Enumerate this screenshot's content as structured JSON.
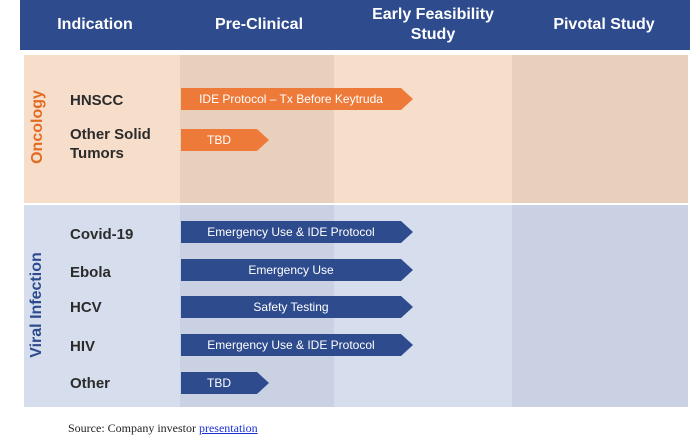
{
  "header": {
    "columns": [
      "Indication",
      "Pre-Clinical",
      "Early Feasibility Study",
      "Pivotal Study"
    ],
    "early_line1": "Early Feasibility",
    "early_line2": "Study"
  },
  "groups": {
    "oncology": {
      "label": "Oncology",
      "rows": [
        {
          "indication": "HNSCC",
          "bar": "IDE Protocol – Tx Before Keytruda"
        },
        {
          "indication_line1": "Other Solid",
          "indication_line2": "Tumors",
          "bar": "TBD"
        }
      ]
    },
    "viral": {
      "label": "Viral Infection",
      "rows": [
        {
          "indication": "Covid-19",
          "bar": "Emergency Use & IDE Protocol"
        },
        {
          "indication": "Ebola",
          "bar": "Emergency Use"
        },
        {
          "indication": "HCV",
          "bar": "Safety Testing"
        },
        {
          "indication": "HIV",
          "bar": "Emergency Use & IDE Protocol"
        },
        {
          "indication": "Other",
          "bar": "TBD"
        }
      ]
    }
  },
  "source": {
    "prefix": "Source: Company investor ",
    "link": "presentation"
  },
  "colors": {
    "header_bg": "#2e4b8e",
    "oncology_bg": "#f7decb",
    "viral_bg": "#d6deed",
    "orange_bar": "#ee7a3a",
    "navy_bar": "#2e4b8e",
    "oncology_label": "#e26b24",
    "viral_label": "#2e4b8e"
  }
}
